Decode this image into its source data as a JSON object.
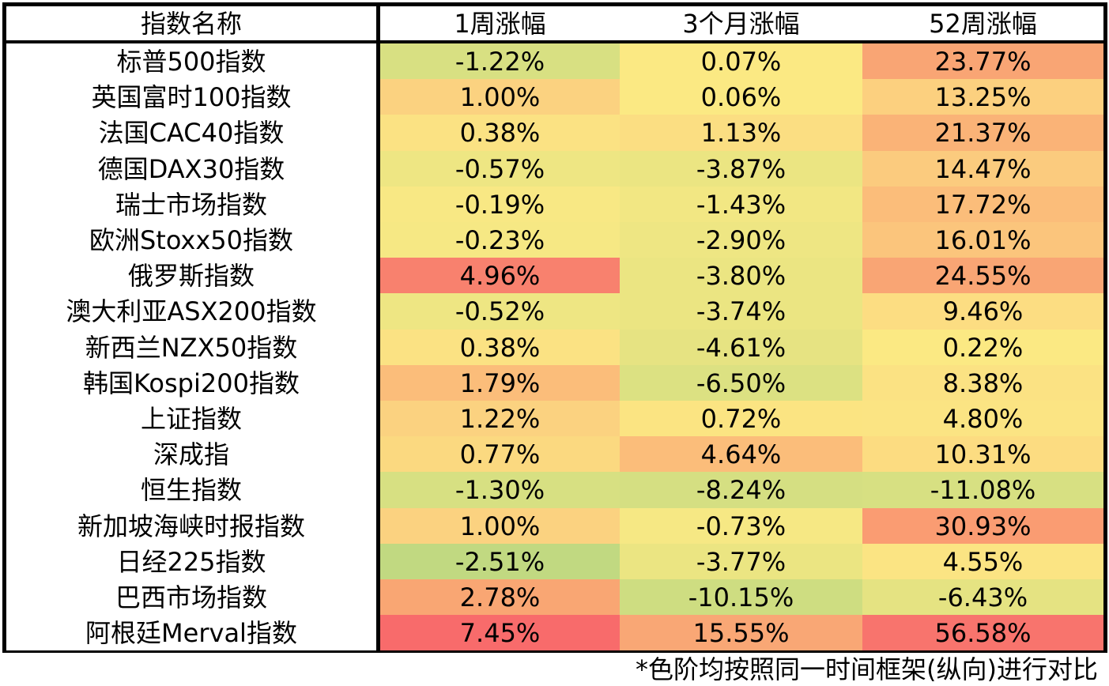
{
  "chart_data": {
    "type": "table",
    "columns": [
      "指数名称",
      "1周涨幅",
      "3个月涨幅",
      "52周涨幅"
    ],
    "rows": [
      [
        "标普500指数",
        "-1.22%",
        "0.07%",
        "23.77%"
      ],
      [
        "英国富时100指数",
        "1.00%",
        "0.06%",
        "13.25%"
      ],
      [
        "法国CAC40指数",
        "0.38%",
        "1.13%",
        "21.37%"
      ],
      [
        "德国DAX30指数",
        "-0.57%",
        "-3.87%",
        "14.47%"
      ],
      [
        "瑞士市场指数",
        "-0.19%",
        "-1.43%",
        "17.72%"
      ],
      [
        "欧洲Stoxx50指数",
        "-0.23%",
        "-2.90%",
        "16.01%"
      ],
      [
        "俄罗斯指数",
        "4.96%",
        "-3.80%",
        "24.55%"
      ],
      [
        "澳大利亚ASX200指数",
        "-0.52%",
        "-3.74%",
        "9.46%"
      ],
      [
        "新西兰NZX50指数",
        "0.38%",
        "-4.61%",
        "0.22%"
      ],
      [
        "韩国Kospi200指数",
        "1.79%",
        "-6.50%",
        "8.38%"
      ],
      [
        "上证指数",
        "1.22%",
        "0.72%",
        "4.80%"
      ],
      [
        "深成指",
        "0.77%",
        "4.64%",
        "10.31%"
      ],
      [
        "恒生指数",
        "-1.30%",
        "-8.24%",
        "-11.08%"
      ],
      [
        "新加坡海峡时报指数",
        "1.00%",
        "-0.73%",
        "30.93%"
      ],
      [
        "日经225指数",
        "-2.51%",
        "-3.77%",
        "4.55%"
      ],
      [
        "巴西市场指数",
        "2.78%",
        "-10.15%",
        "-6.43%"
      ],
      [
        "阿根廷Merval指数",
        "7.45%",
        "15.55%",
        "56.58%"
      ]
    ],
    "cell_colors": [
      [
        "#d8e082",
        "#fbe983",
        "#f9a574"
      ],
      [
        "#fbd280",
        "#fbe983",
        "#fcd07f"
      ],
      [
        "#fbe283",
        "#fbde82",
        "#fab377"
      ],
      [
        "#eee683",
        "#ebe582",
        "#fbcb7e"
      ],
      [
        "#f8e884",
        "#f2e783",
        "#fbbd7a"
      ],
      [
        "#f6e884",
        "#eee683",
        "#fbc57c"
      ],
      [
        "#f8816e",
        "#ebe582",
        "#f9a574"
      ],
      [
        "#eee683",
        "#ebe582",
        "#fcdd82"
      ],
      [
        "#fbe283",
        "#e6e382",
        "#fbe983"
      ],
      [
        "#fbbd7a",
        "#dce182",
        "#fbe283"
      ],
      [
        "#fbd280",
        "#fbe482",
        "#fbe483"
      ],
      [
        "#fbd980",
        "#fbbd7a",
        "#fcdc81"
      ],
      [
        "#d7e082",
        "#d5df82",
        "#d7e082"
      ],
      [
        "#fbd280",
        "#f6e884",
        "#fa9c72"
      ],
      [
        "#c1d981",
        "#ebe582",
        "#fbe483"
      ],
      [
        "#f9a673",
        "#cedd81",
        "#e5e382"
      ],
      [
        "#f86b6b",
        "#f9a775",
        "#f8746d"
      ]
    ]
  },
  "footnote": "*色阶均按照同一时间框架(纵向)进行对比"
}
